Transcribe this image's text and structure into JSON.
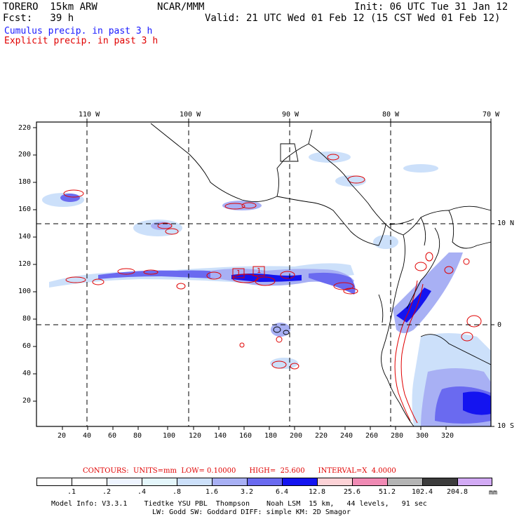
{
  "header": {
    "model": "TORERO  15km ARW",
    "center": "NCAR/MMM",
    "init": "Init: 06 UTC Tue 31 Jan 12",
    "fcst": "Fcst:   39 h",
    "valid": "Valid: 21 UTC Wed 01 Feb 12 (15 CST Wed 01 Feb 12)"
  },
  "legend": {
    "cumulus": "Cumulus precip. in past 3 h",
    "explicit": "Explicit precip. in past 3 h",
    "cumulus_color": "#1a1aff",
    "explicit_color": "#e00000"
  },
  "map": {
    "lon_labels": [
      "110 W",
      "100 W",
      "90 W",
      "80 W",
      "70 W"
    ],
    "lat_labels": [
      "10 N",
      "0",
      "10 S"
    ],
    "y_ticks": [
      "220",
      "200",
      "180",
      "160",
      "140",
      "120",
      "100",
      "80",
      "60",
      "40",
      "20"
    ],
    "x_ticks": [
      "20",
      "40",
      "60",
      "80",
      "100",
      "120",
      "140",
      "160",
      "180",
      "200",
      "220",
      "240",
      "260",
      "280",
      "300",
      "320"
    ],
    "contour_labels": [
      "1",
      "1"
    ]
  },
  "contours_info": {
    "text": "CONTOURS:  UNITS=mm  LOW= 0.10000      HIGH=  25.600      INTERVAL=X  4.0000",
    "units": "mm",
    "low": "0.10000",
    "high": "25.600",
    "interval": "4.0000"
  },
  "colorbar": {
    "labels": [
      ".1",
      ".2",
      ".4",
      ".8",
      "1.6",
      "3.2",
      "6.4",
      "12.8",
      "25.6",
      "51.2",
      "102.4",
      "204.8"
    ],
    "units": "mm",
    "colors": [
      "#ffffff",
      "#ffffff",
      "#eef4ff",
      "#e4f6fb",
      "#cce0fa",
      "#a8b0f4",
      "#6a6af0",
      "#1414f0",
      "#fcd2d6",
      "#f08ab4",
      "#b4b4b4",
      "#3c3c3c",
      "#d2aaf4"
    ]
  },
  "footer": {
    "line1": "Model Info: V3.3.1    Tiedtke YSU PBL  Thompson    Noah LSM  15 km,   44 levels,   91 sec",
    "line2": "LW: Godd SW: Goddard DIFF: simple KM: 2D Smagor"
  }
}
